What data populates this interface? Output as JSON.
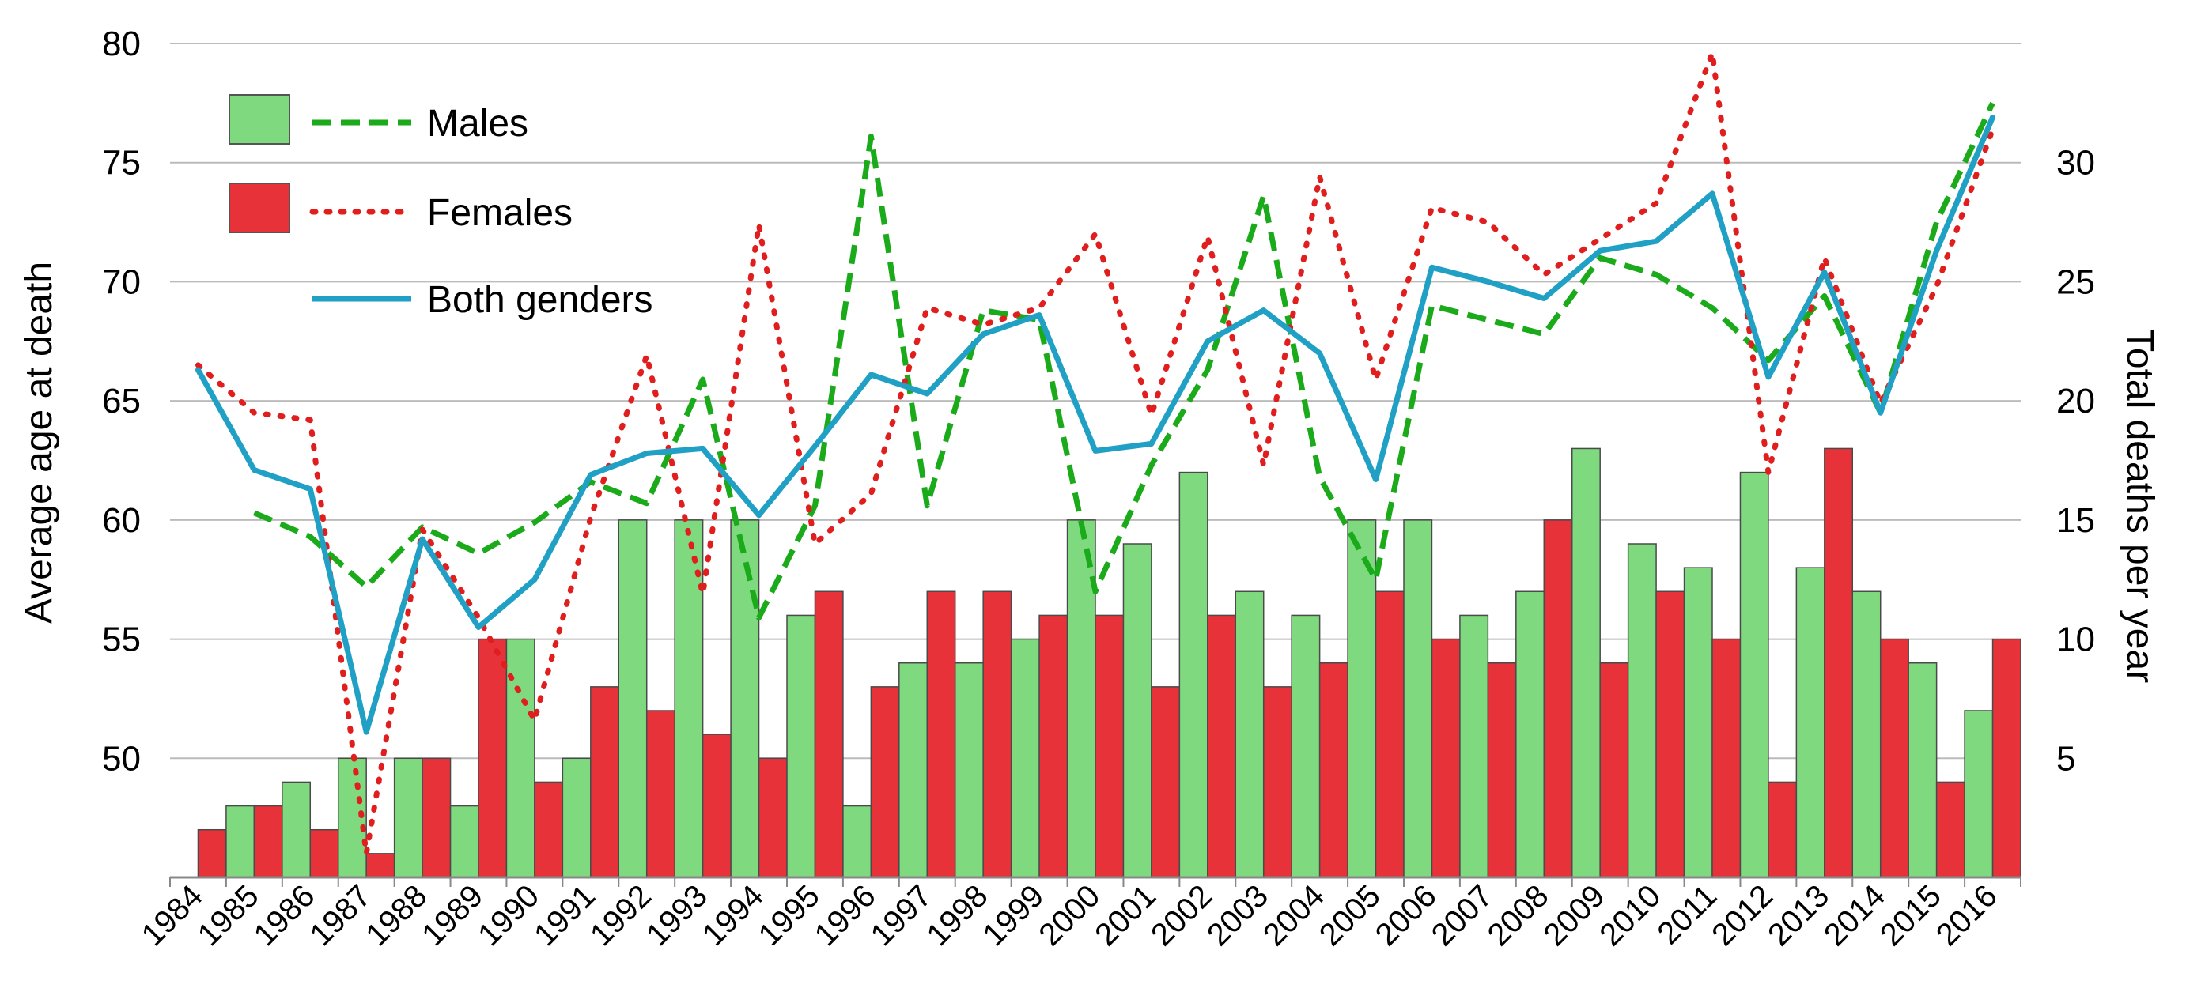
{
  "chart_data": {
    "type": "bar+line",
    "title": "",
    "ylabel_left": "Average age at death",
    "ylabel_right": "Total deaths per year",
    "left_axis": {
      "range": [
        45,
        80
      ],
      "ticks": [
        50,
        55,
        60,
        65,
        70,
        75,
        80
      ]
    },
    "right_axis": {
      "range": [
        0,
        35
      ],
      "ticks": [
        5,
        10,
        15,
        20,
        25,
        30
      ]
    },
    "grid": true,
    "legend_position": "top-left",
    "legend": {
      "males": "Males",
      "females": "Females",
      "both": "Both genders"
    },
    "colors": {
      "male_bar": "#7fd97f",
      "female_bar": "#e8323a",
      "male_line": "#1aaa1a",
      "female_line": "#e01e1e",
      "both_line": "#1fa0c4",
      "grid": "#bbbbbb",
      "axis": "#888888"
    },
    "categories": [
      "1984",
      "1985",
      "1986",
      "1987",
      "1988",
      "1989",
      "1990",
      "1991",
      "1992",
      "1993",
      "1994",
      "1995",
      "1996",
      "1997",
      "1998",
      "1999",
      "2000",
      "2001",
      "2002",
      "2003",
      "2004",
      "2005",
      "2006",
      "2007",
      "2008",
      "2009",
      "2010",
      "2011",
      "2012",
      "2013",
      "2014",
      "2015",
      "2016"
    ],
    "bars": [
      {
        "name": "Males",
        "axis": "right",
        "values": [
          0,
          3,
          4,
          5,
          5,
          3,
          10,
          5,
          15,
          15,
          15,
          11,
          3,
          9,
          9,
          10,
          15,
          14,
          17,
          12,
          11,
          15,
          15,
          11,
          12,
          18,
          14,
          13,
          17,
          13,
          12,
          9,
          7
        ]
      },
      {
        "name": "Females",
        "axis": "right",
        "values": [
          2,
          3,
          2,
          1,
          5,
          10,
          4,
          8,
          7,
          6,
          5,
          12,
          8,
          12,
          12,
          11,
          11,
          8,
          11,
          8,
          9,
          12,
          10,
          9,
          15,
          9,
          12,
          10,
          4,
          18,
          10,
          4,
          10
        ]
      }
    ],
    "lines": [
      {
        "name": "Males",
        "axis": "left",
        "style": "dashed",
        "values": [
          null,
          60.3,
          59.3,
          57.2,
          59.7,
          58.6,
          59.9,
          61.6,
          60.7,
          65.9,
          55.9,
          60.6,
          76.1,
          60.6,
          68.8,
          68.4,
          57.0,
          62.3,
          66.3,
          73.6,
          61.8,
          57.5,
          69.0,
          68.4,
          67.8,
          71.0,
          70.3,
          68.9,
          66.7,
          69.4,
          64.5,
          72.5,
          77.5
        ]
      },
      {
        "name": "Females",
        "axis": "left",
        "style": "dotted",
        "values": [
          66.5,
          64.5,
          64.2,
          46.0,
          59.6,
          55.9,
          51.6,
          60.1,
          66.9,
          56.9,
          72.4,
          59.0,
          61.1,
          68.9,
          68.2,
          68.9,
          72.0,
          64.4,
          71.9,
          62.3,
          74.4,
          65.9,
          73.1,
          72.5,
          70.3,
          71.8,
          73.3,
          79.6,
          62.0,
          71.0,
          64.9,
          69.8,
          76.4
        ]
      },
      {
        "name": "Both genders",
        "axis": "left",
        "style": "solid",
        "values": [
          66.3,
          62.1,
          61.3,
          51.1,
          59.2,
          55.5,
          57.5,
          61.9,
          62.8,
          63.0,
          60.2,
          63.1,
          66.1,
          65.3,
          67.8,
          68.6,
          62.9,
          63.2,
          67.5,
          68.8,
          67.0,
          61.7,
          70.6,
          70.0,
          69.3,
          71.3,
          71.7,
          73.7,
          66.0,
          70.4,
          64.5,
          71.3,
          76.9
        ]
      }
    ]
  }
}
